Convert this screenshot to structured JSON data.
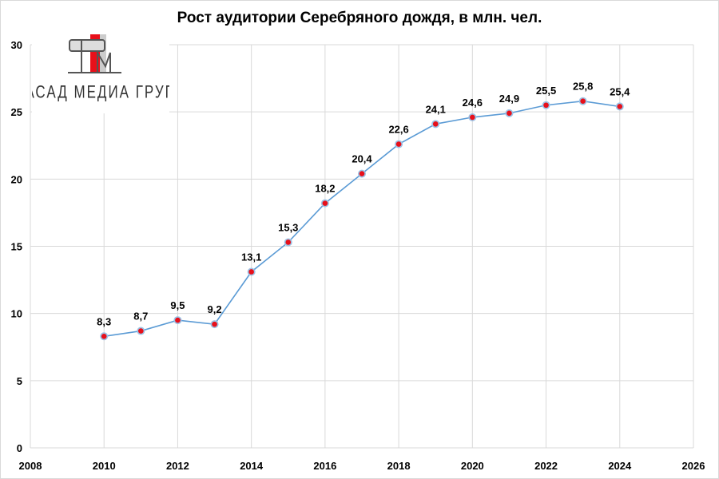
{
  "chart_data": {
    "type": "line",
    "title": "Рост аудитории Серебряного дождя, в млн. чел.",
    "xlabel": "",
    "ylabel": "",
    "xlim": [
      2008,
      2026
    ],
    "ylim": [
      0,
      30
    ],
    "xticks": [
      2008,
      2010,
      2012,
      2014,
      2016,
      2018,
      2020,
      2022,
      2024,
      2026
    ],
    "yticks": [
      0,
      5,
      10,
      15,
      20,
      25,
      30
    ],
    "grid": true,
    "x": [
      2010,
      2011,
      2012,
      2013,
      2014,
      2015,
      2016,
      2017,
      2018,
      2019,
      2020,
      2021,
      2022,
      2023,
      2024
    ],
    "y": [
      8.3,
      8.7,
      9.5,
      9.2,
      13.1,
      15.3,
      18.2,
      20.4,
      22.6,
      24.1,
      24.6,
      24.9,
      25.5,
      25.8,
      25.4
    ],
    "data_labels": [
      "8,3",
      "8,7",
      "9,5",
      "9,2",
      "13,1",
      "15,3",
      "18,2",
      "20,4",
      "22,6",
      "24,1",
      "24,6",
      "24,9",
      "25,5",
      "25,8",
      "25,4"
    ],
    "colors": {
      "line": "#5b9bd5",
      "marker": "#e8101a",
      "grid": "#d9d9d9"
    }
  },
  "logo": {
    "text": "ФАСАД МЕДИА ГРУПП"
  }
}
